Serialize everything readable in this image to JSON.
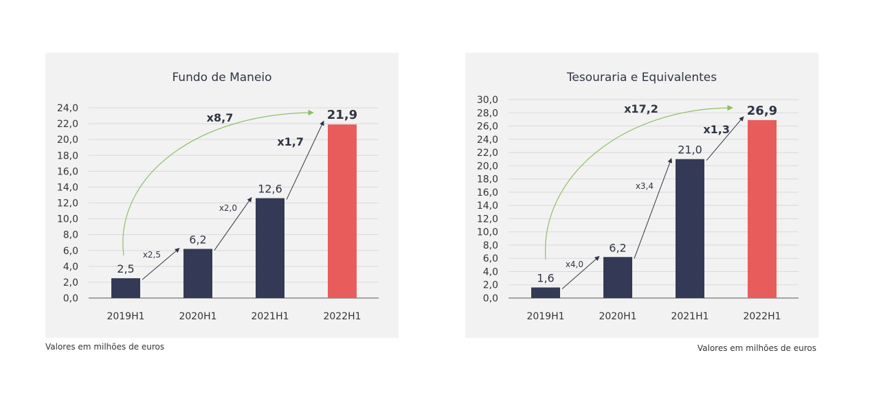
{
  "chart_data": [
    {
      "type": "bar",
      "title": "Fundo de Maneio",
      "categories": [
        "2019H1",
        "2020H1",
        "2021H1",
        "2022H1"
      ],
      "values": [
        2.5,
        6.2,
        12.6,
        21.9
      ],
      "value_labels": [
        "2,5",
        "6,2",
        "12,6",
        "21,9"
      ],
      "ylim": [
        0,
        24
      ],
      "yticks": [
        "0,0",
        "2,0",
        "4,0",
        "6,0",
        "8,0",
        "10,0",
        "12,0",
        "14,0",
        "16,0",
        "18,0",
        "20,0",
        "22,0",
        "24,0"
      ],
      "ystep": 2,
      "grid": true,
      "bar_colors": [
        "#343a55",
        "#343a55",
        "#343a55",
        "#e85c5c"
      ],
      "growth_labels": [
        "x2,5",
        "x2,0",
        "x1,7"
      ],
      "overall_growth": "x8,7",
      "footnote": "Valores em milhões de euros"
    },
    {
      "type": "bar",
      "title": "Tesouraria e Equivalentes",
      "categories": [
        "2019H1",
        "2020H1",
        "2021H1",
        "2022H1"
      ],
      "values": [
        1.6,
        6.2,
        21.0,
        26.9
      ],
      "value_labels": [
        "1,6",
        "6,2",
        "21,0",
        "26,9"
      ],
      "ylim": [
        0,
        30
      ],
      "yticks": [
        "0,0",
        "2,0",
        "4,0",
        "6,0",
        "8,0",
        "10,0",
        "12,0",
        "14,0",
        "16,0",
        "18,0",
        "20,0",
        "22,0",
        "24,0",
        "26,0",
        "28,0",
        "30,0"
      ],
      "ystep": 2,
      "grid": true,
      "bar_colors": [
        "#343a55",
        "#343a55",
        "#343a55",
        "#e85c5c"
      ],
      "growth_labels": [
        "x4,0",
        "x3,4",
        "x1,3"
      ],
      "overall_growth": "x17,2",
      "footnote": "Valores em milhões de euros"
    }
  ],
  "colors": {
    "bar": "#343a55",
    "highlight": "#e85c5c",
    "arrow": "#2f3545",
    "curve": "#8cc066",
    "grid": "#d9d9d9",
    "panel": "#f2f2f2"
  }
}
